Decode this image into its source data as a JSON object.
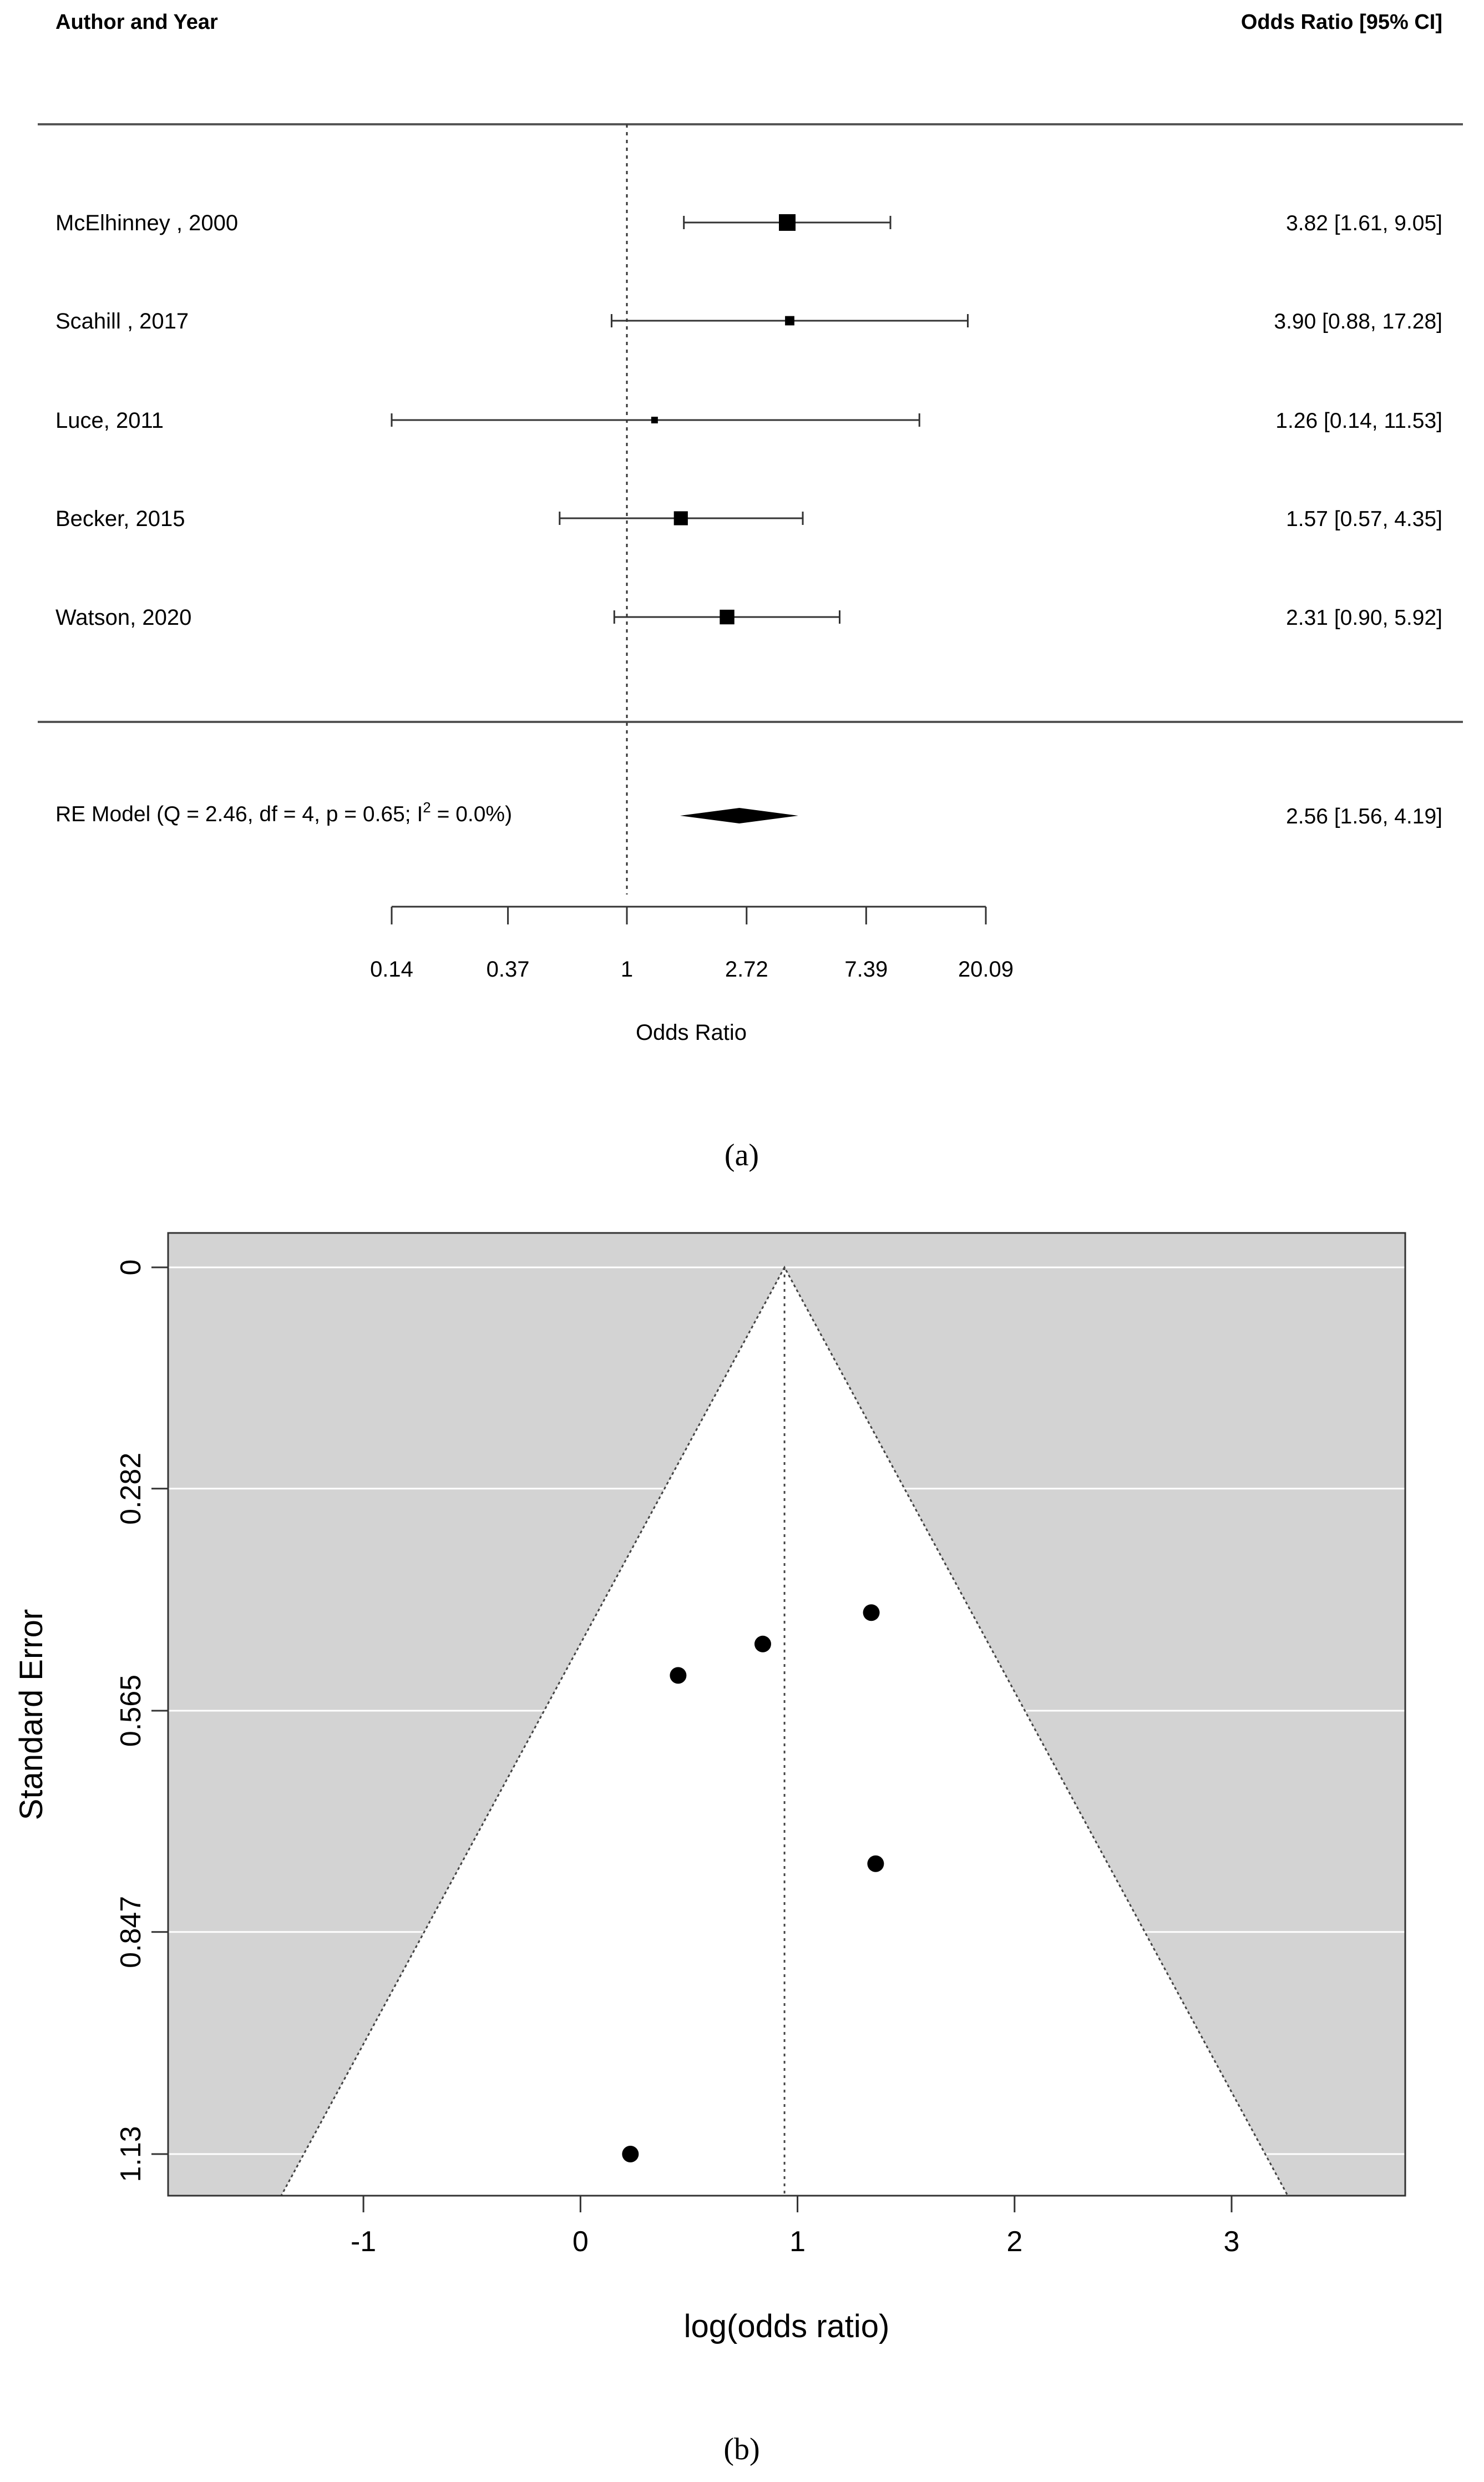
{
  "panel_labels": {
    "a": "(a)",
    "b": "(b)"
  },
  "chart_data": [
    {
      "type": "forest",
      "header_left": "Author and Year",
      "header_right": "Odds Ratio [95% CI]",
      "studies": [
        {
          "label": "McElhinney , 2000",
          "or": 3.82,
          "lo": 1.61,
          "hi": 9.05,
          "ci_text": "3.82 [1.61,  9.05]",
          "weight": 1.0
        },
        {
          "label": "Scahill  , 2017",
          "or": 3.9,
          "lo": 0.88,
          "hi": 17.28,
          "ci_text": "3.90 [0.88, 17.28]",
          "weight": 0.45
        },
        {
          "label": "Luce, 2011",
          "or": 1.26,
          "lo": 0.14,
          "hi": 11.53,
          "ci_text": "1.26 [0.14, 11.53]",
          "weight": 0.25
        },
        {
          "label": "Becker, 2015",
          "or": 1.57,
          "lo": 0.57,
          "hi": 4.35,
          "ci_text": "1.57 [0.57,  4.35]",
          "weight": 0.8
        },
        {
          "label": "Watson, 2020",
          "or": 2.31,
          "lo": 0.9,
          "hi": 5.92,
          "ci_text": "2.31 [0.90,  5.92]",
          "weight": 0.85
        }
      ],
      "summary": {
        "label_main": "RE Model (Q = 2.46, df = 4, p = 0.65; I",
        "label_sup": "2",
        "label_tail": " = 0.0%)",
        "or": 2.56,
        "lo": 1.56,
        "hi": 4.19,
        "ci_text": "2.56 [1.56,  4.19]"
      },
      "xaxis": {
        "label": "Odds Ratio",
        "scale": "log",
        "ticks": [
          0.14,
          0.37,
          1,
          2.72,
          7.39,
          20.09
        ],
        "tick_labels": [
          "0.14",
          "0.37",
          "1",
          "2.72",
          "7.39",
          "20.09"
        ],
        "reference_line": 1
      }
    },
    {
      "type": "scatter",
      "subtype": "funnel",
      "xlabel": "log(odds ratio)",
      "ylabel": "Standard Error",
      "xlim": [
        -1.9,
        3.8
      ],
      "ylim": [
        1.13,
        0
      ],
      "x_ticks": [
        -1,
        0,
        1,
        2,
        3
      ],
      "x_tick_labels": [
        "-1",
        "0",
        "1",
        "2",
        "3"
      ],
      "y_ticks": [
        0,
        0.282,
        0.565,
        0.847,
        1.13
      ],
      "y_tick_labels": [
        "0",
        "0.282",
        "0.565",
        "0.847",
        "1.13"
      ],
      "center": 0.94,
      "points": [
        {
          "x": 1.34,
          "y": 0.44
        },
        {
          "x": 0.84,
          "y": 0.48
        },
        {
          "x": 0.45,
          "y": 0.52
        },
        {
          "x": 1.36,
          "y": 0.76
        },
        {
          "x": 0.23,
          "y": 1.13
        }
      ],
      "colors": {
        "background": "#d3d3d3",
        "funnel": "#ffffff",
        "grid": "#ffffff",
        "point": "#000000"
      }
    }
  ]
}
